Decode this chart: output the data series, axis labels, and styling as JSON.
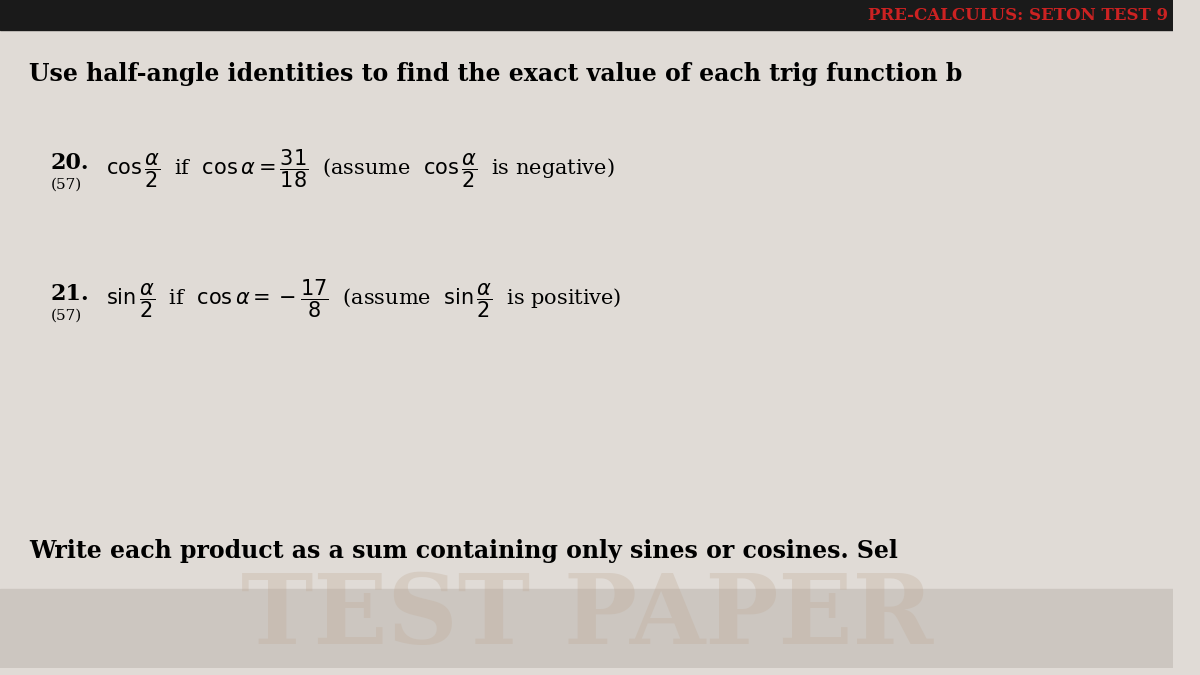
{
  "bg_color": "#d8d4d0",
  "header_bar_color": "#1a1a1a",
  "header_text": "PRE-CALCULUS: SETON TEST 9",
  "header_text_color": "#cc2222",
  "page_bg": "#e0dbd6",
  "section_title": "Use half-angle identities to find the exact value of each trig function b",
  "section_title_fontsize": 17,
  "q20_number": "20.",
  "q20_ref": "(57)",
  "q21_number": "21.",
  "q21_ref": "(57)",
  "footer_text": "Write each product as a sum containing only sines or cosines. Sel",
  "footer_fontsize": 17,
  "watermark_color": "#c0aa95",
  "watermark_alpha": 0.3
}
